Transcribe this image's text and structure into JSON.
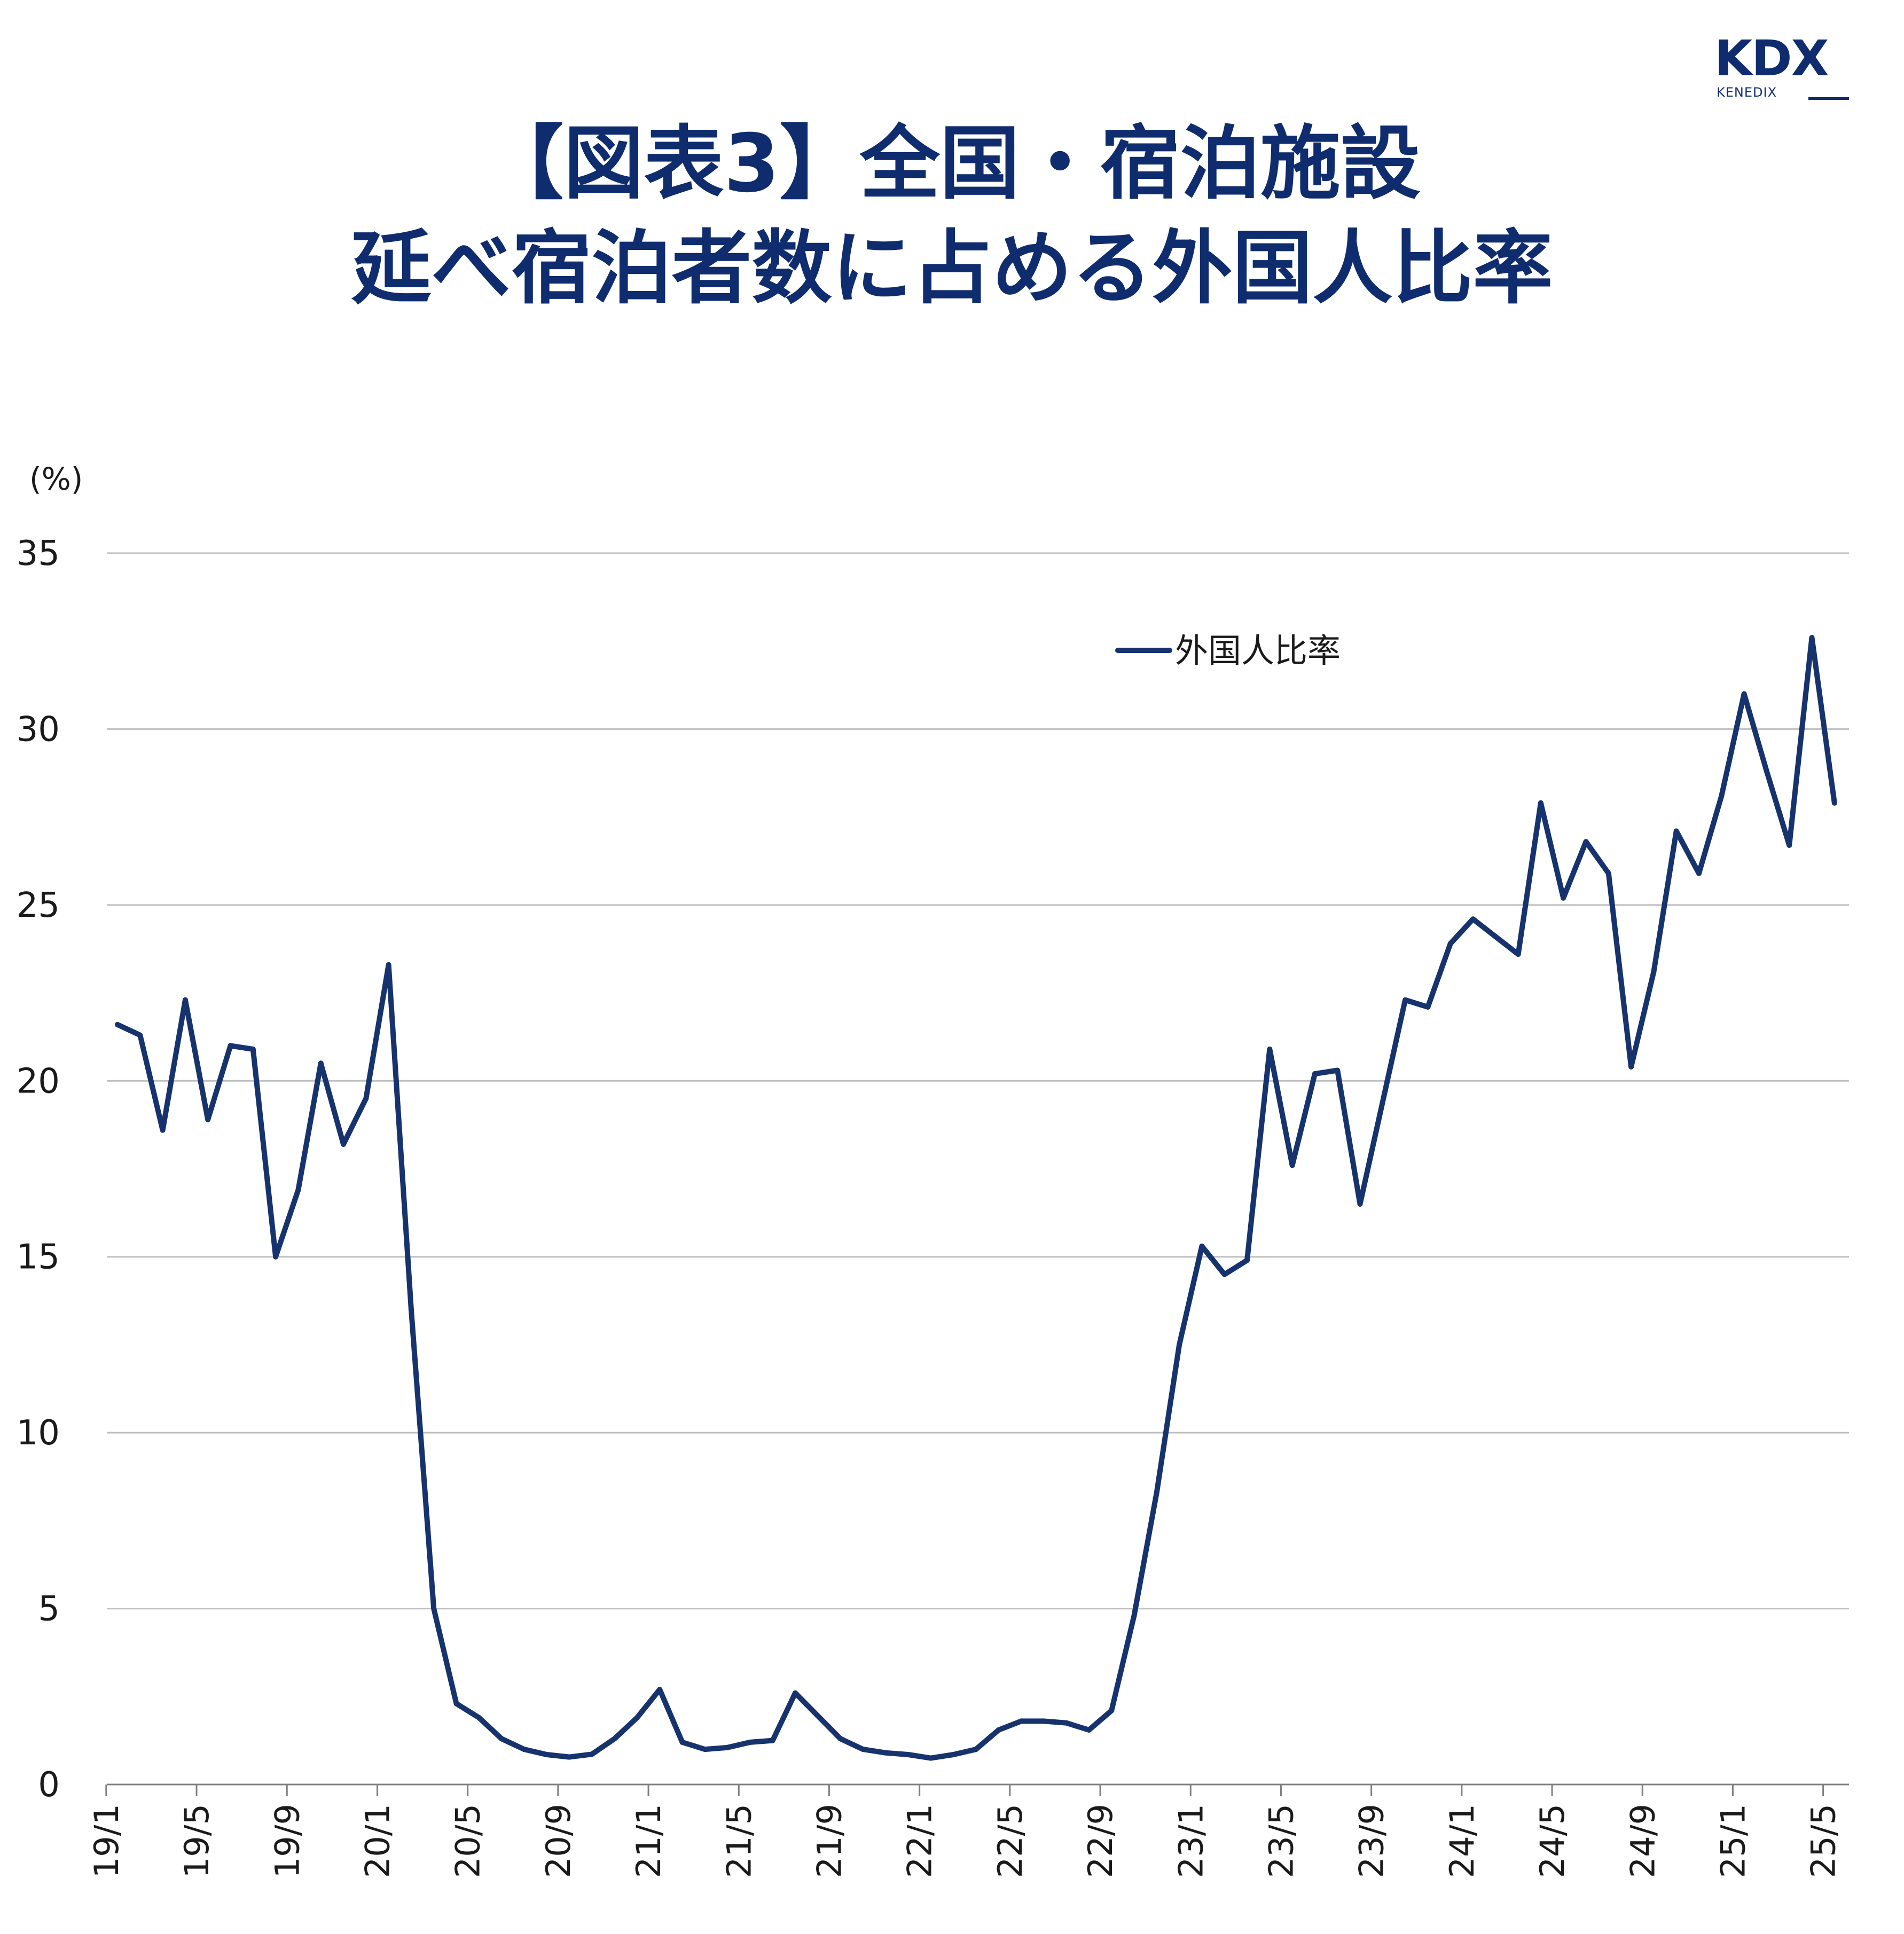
{
  "logo": {
    "main": "KDX",
    "sub": "KENEDIX"
  },
  "title_line1": "【図表3】全国・宿泊施設",
  "title_line2": "延べ宿泊者数に占める外国人比率",
  "colors": {
    "series": "#17336e",
    "grid": "#bfbfbf",
    "axis": "#7f7f7f",
    "title": "#0f2c6e"
  },
  "chart_data": {
    "type": "line",
    "title": "【図表3】全国・宿泊施設 延べ宿泊者数に占める外国人比率",
    "ylabel": "(%)",
    "xlabel": "",
    "ylim": [
      0,
      35
    ],
    "yticks": [
      0,
      5,
      10,
      15,
      20,
      25,
      30,
      35
    ],
    "grid": true,
    "legend_position": "top-right",
    "x_tick_labels": [
      "19/1",
      "19/5",
      "19/9",
      "20/1",
      "20/5",
      "20/9",
      "21/1",
      "21/5",
      "21/9",
      "22/1",
      "22/5",
      "22/9",
      "23/1",
      "23/5",
      "23/9",
      "24/1",
      "24/5",
      "24/9",
      "25/1",
      "25/5"
    ],
    "x": [
      "19/1",
      "19/2",
      "19/3",
      "19/4",
      "19/5",
      "19/6",
      "19/7",
      "19/8",
      "19/9",
      "19/10",
      "19/11",
      "19/12",
      "20/1",
      "20/2",
      "20/3",
      "20/4",
      "20/5",
      "20/6",
      "20/7",
      "20/8",
      "20/9",
      "20/10",
      "20/11",
      "20/12",
      "21/1",
      "21/2",
      "21/3",
      "21/4",
      "21/5",
      "21/6",
      "21/7",
      "21/8",
      "21/9",
      "21/10",
      "21/11",
      "21/12",
      "22/1",
      "22/2",
      "22/3",
      "22/4",
      "22/5",
      "22/6",
      "22/7",
      "22/8",
      "22/9",
      "22/10",
      "22/11",
      "22/12",
      "23/1",
      "23/2",
      "23/3",
      "23/4",
      "23/5",
      "23/6",
      "23/7",
      "23/8",
      "23/9",
      "23/10",
      "23/11",
      "23/12",
      "24/1",
      "24/2",
      "24/3",
      "24/4",
      "24/5",
      "24/6",
      "24/7",
      "24/8",
      "24/9",
      "24/10",
      "24/11",
      "24/12",
      "25/1",
      "25/2",
      "25/3",
      "25/4",
      "25/5"
    ],
    "series": [
      {
        "name": "外国人比率",
        "values": [
          21.6,
          21.3,
          18.6,
          22.3,
          18.9,
          21.0,
          20.9,
          15.0,
          16.9,
          20.5,
          18.2,
          19.5,
          23.3,
          13.5,
          5.0,
          2.3,
          1.9,
          1.3,
          1.0,
          0.85,
          0.78,
          0.86,
          1.3,
          1.9,
          2.7,
          1.2,
          1.0,
          1.05,
          1.2,
          1.25,
          2.6,
          1.95,
          1.3,
          1.0,
          0.9,
          0.85,
          0.75,
          0.85,
          1.0,
          1.55,
          1.8,
          1.8,
          1.75,
          1.55,
          2.1,
          4.8,
          8.3,
          12.5,
          15.3,
          14.5,
          14.9,
          20.9,
          17.6,
          20.2,
          20.3,
          16.5,
          19.4,
          22.3,
          22.1,
          23.9,
          24.6,
          24.1,
          23.6,
          27.9,
          25.2,
          26.8,
          25.9,
          20.4,
          23.1,
          27.1,
          25.9,
          28.1,
          31.0,
          28.8,
          26.7,
          32.6,
          27.9
        ]
      }
    ]
  }
}
